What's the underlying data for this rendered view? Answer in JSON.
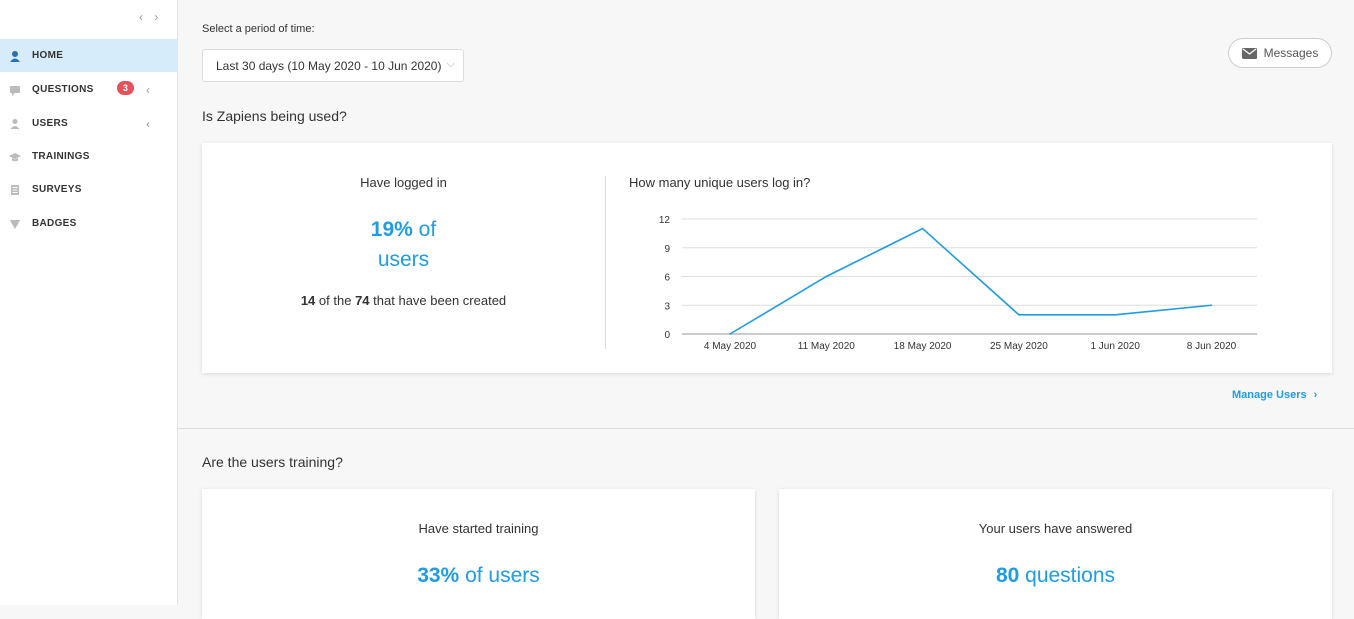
{
  "sidebar": {
    "collapse": "‹ ›",
    "items": [
      {
        "label": "HOME",
        "icon": "home-icon"
      },
      {
        "label": "QUESTIONS",
        "icon": "questions-icon",
        "badge": "3"
      },
      {
        "label": "USERS",
        "icon": "users-icon"
      },
      {
        "label": "TRAININGS",
        "icon": "trainings-icon"
      },
      {
        "label": "SURVEYS",
        "icon": "surveys-icon"
      },
      {
        "label": "BADGES",
        "icon": "badges-icon"
      }
    ]
  },
  "header": {
    "period_label": "Select a period of time:",
    "period_value": "Last 30 days (10 May 2020 - 10 Jun 2020)",
    "messages_label": "Messages"
  },
  "usage": {
    "title": "Is Zapiens being used?",
    "logged_head": "Have logged in",
    "logged_pct": "19%",
    "logged_of": "of",
    "logged_users": "users",
    "logged_count": "14",
    "logged_mid": "of the",
    "logged_total": "74",
    "logged_tail": "that have been created",
    "chart_title": "How many unique users log in?",
    "manage_users": "Manage Users"
  },
  "chart_data": {
    "type": "line",
    "title": "How many unique users log in?",
    "x": [
      "4 May 2020",
      "11 May 2020",
      "18 May 2020",
      "25 May 2020",
      "1 Jun 2020",
      "8 Jun 2020"
    ],
    "series": [
      {
        "values": [
          0,
          6,
          11,
          2,
          2,
          3
        ]
      }
    ],
    "yticks": [
      0,
      3,
      6,
      9,
      12
    ],
    "ylim": [
      0,
      12
    ],
    "grid": true,
    "color": "#1e9ce4"
  },
  "training": {
    "title": "Are the users training?",
    "started_head": "Have started training",
    "started_pct": "33%",
    "started_tail": "of users",
    "answered_head": "Your users have answered",
    "answered_count": "80",
    "answered_tail": "questions"
  },
  "colors": {
    "accent": "#1e9ce4",
    "badge": "#e8505b",
    "active_bg": "#d7ecfb"
  }
}
